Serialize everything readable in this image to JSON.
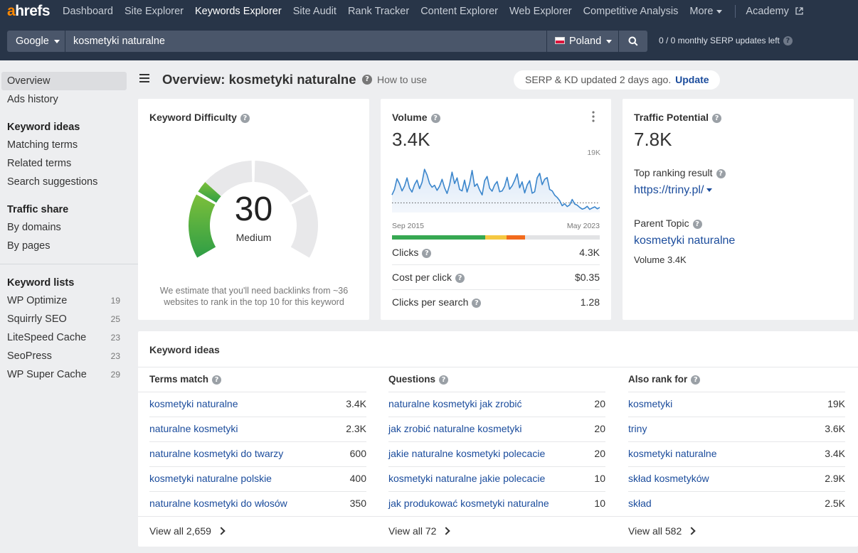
{
  "nav": {
    "logo_a": "a",
    "logo_rest": "hrefs",
    "items": [
      "Dashboard",
      "Site Explorer",
      "Keywords Explorer",
      "Site Audit",
      "Rank Tracker",
      "Content Explorer",
      "Web Explorer",
      "Competitive Analysis",
      "More"
    ],
    "active": "Keywords Explorer",
    "academy": "Academy"
  },
  "search": {
    "engine": "Google",
    "query": "kosmetyki naturalne",
    "country": "Poland",
    "serp_updates": "0 / 0 monthly SERP updates left"
  },
  "sidebar": {
    "overview": "Overview",
    "ads_history": "Ads history",
    "keyword_ideas_head": "Keyword ideas",
    "keyword_ideas": [
      "Matching terms",
      "Related terms",
      "Search suggestions"
    ],
    "traffic_share_head": "Traffic share",
    "traffic_share": [
      "By domains",
      "By pages"
    ],
    "keyword_lists_head": "Keyword lists",
    "keyword_lists": [
      {
        "name": "WP Optimize",
        "count": "19"
      },
      {
        "name": "Squirrly SEO",
        "count": "25"
      },
      {
        "name": "LiteSpeed Cache",
        "count": "23"
      },
      {
        "name": "SeoPress",
        "count": "23"
      },
      {
        "name": "WP Super Cache",
        "count": "29"
      }
    ]
  },
  "header": {
    "title": "Overview: kosmetyki naturalne",
    "how_to_use": "How to use",
    "serp_status": "SERP & KD updated 2 days ago.",
    "update": "Update"
  },
  "kd": {
    "title": "Keyword Difficulty",
    "value": "30",
    "score": 30,
    "label": "Medium",
    "note": "We estimate that you'll need backlinks from ~36 websites to rank in the top 10 for this keyword",
    "colors": {
      "fill_dark": "#2e9e46",
      "fill_light": "#7cbf3a",
      "track": "#e8e8ea"
    }
  },
  "volume": {
    "title": "Volume",
    "value": "3.4K",
    "max_label": "19K",
    "start_label": "Sep 2015",
    "end_label": "May 2023",
    "metrics": [
      {
        "label": "Clicks",
        "value": "4.3K"
      },
      {
        "label": "Cost per click",
        "value": "$0.35"
      },
      {
        "label": "Clicks per search",
        "value": "1.28"
      }
    ],
    "click_bar": [
      {
        "share": 0.45,
        "color": "#36a852"
      },
      {
        "share": 0.1,
        "color": "#f5c842"
      },
      {
        "share": 0.09,
        "color": "#f26b1d"
      },
      {
        "share": 0.36,
        "color": "#e2e3e5"
      }
    ]
  },
  "chart_data": {
    "type": "area",
    "x_start": "Sep 2015",
    "x_end": "May 2023",
    "ymax_label": "19K",
    "ylim": [
      0,
      19000
    ],
    "values": [
      6200,
      8100,
      11900,
      10100,
      7600,
      9300,
      12200,
      8600,
      7200,
      9800,
      11400,
      8400,
      10600,
      15200,
      13200,
      10200,
      8900,
      9600,
      7800,
      9200,
      11700,
      8700,
      6700,
      9700,
      14200,
      10200,
      12200,
      8100,
      7600,
      11400,
      7200,
      10200,
      14800,
      9200,
      10100,
      7900,
      6200,
      11200,
      12700,
      8600,
      7500,
      9700,
      10900,
      7300,
      7600,
      9200,
      12400,
      8200,
      9400,
      11300,
      13600,
      8700,
      10800,
      6900,
      9700,
      11200,
      6800,
      7300,
      12200,
      13800,
      9800,
      11700,
      12300,
      8100,
      7600,
      6100,
      5300,
      4200,
      2400,
      3100,
      2100,
      2700,
      4600,
      3000,
      2600,
      1800,
      1200,
      1500,
      2200,
      1100,
      1600,
      2000,
      1300,
      1800
    ],
    "baseline": 3400,
    "colors": {
      "line": "#3b86cc",
      "fill": "#dce9f7"
    }
  },
  "traffic_potential": {
    "title": "Traffic Potential",
    "value": "7.8K",
    "top_ranking_label": "Top ranking result",
    "top_ranking_url": "https://triny.pl/",
    "parent_topic_label": "Parent Topic",
    "parent_topic": "kosmetyki naturalne",
    "parent_volume": "Volume 3.4K"
  },
  "ideas": {
    "title": "Keyword ideas",
    "columns": [
      {
        "head": "Terms match",
        "rows": [
          {
            "kw": "kosmetyki naturalne",
            "vol": "3.4K"
          },
          {
            "kw": "naturalne kosmetyki",
            "vol": "2.3K"
          },
          {
            "kw": "naturalne kosmetyki do twarzy",
            "vol": "600"
          },
          {
            "kw": "kosmetyki naturalne polskie",
            "vol": "400"
          },
          {
            "kw": "naturalne kosmetyki do włosów",
            "vol": "350"
          }
        ],
        "view_all": "View all 2,659"
      },
      {
        "head": "Questions",
        "rows": [
          {
            "kw": "naturalne kosmetyki jak zrobić",
            "vol": "20"
          },
          {
            "kw": "jak zrobić naturalne kosmetyki",
            "vol": "20"
          },
          {
            "kw": "jakie naturalne kosmetyki polecacie",
            "vol": "20"
          },
          {
            "kw": "kosmetyki naturalne jakie polecacie",
            "vol": "10"
          },
          {
            "kw": "jak produkować kosmetyki naturalne",
            "vol": "10"
          }
        ],
        "view_all": "View all 72"
      },
      {
        "head": "Also rank for",
        "rows": [
          {
            "kw": "kosmetyki",
            "vol": "19K"
          },
          {
            "kw": "triny",
            "vol": "3.6K"
          },
          {
            "kw": "kosmetyki naturalne",
            "vol": "3.4K"
          },
          {
            "kw": "skład kosmetyków",
            "vol": "2.9K"
          },
          {
            "kw": "skład",
            "vol": "2.5K"
          }
        ],
        "view_all": "View all 582"
      }
    ]
  }
}
